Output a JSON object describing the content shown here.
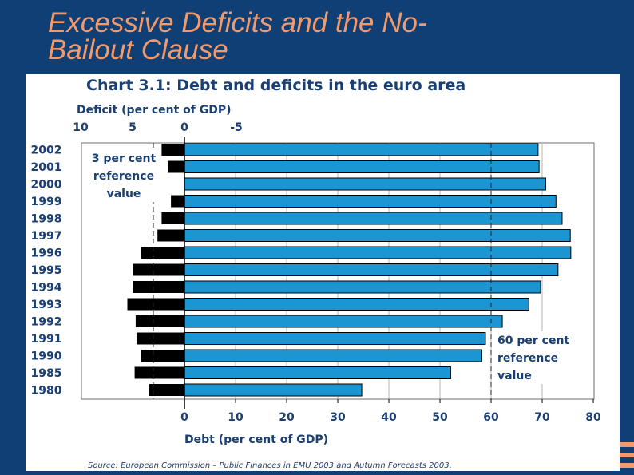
{
  "slide": {
    "title_line1": "Excessive Deficits and the No-",
    "title_line2": "Bailout Clause"
  },
  "chart_data": {
    "type": "bar",
    "title": "Chart 3.1: Debt and deficits in the euro area",
    "deficit_axis_label": "Deficit (per cent of GDP)",
    "deficit_ticks": [
      "10",
      "5",
      "0",
      "-5"
    ],
    "debt_axis_label": "Debt (per cent of GDP)",
    "debt_ticks": [
      "0",
      "10",
      "20",
      "30",
      "40",
      "50",
      "60",
      "70",
      "80"
    ],
    "debt_xlim": [
      0,
      80
    ],
    "deficit_xlim": [
      10,
      -5
    ],
    "categories": [
      "2002",
      "2001",
      "2000",
      "1999",
      "1998",
      "1997",
      "1996",
      "1995",
      "1994",
      "1993",
      "1992",
      "1991",
      "1990",
      "1985",
      "1980"
    ],
    "series": [
      {
        "name": "Deficit",
        "color": "#000000",
        "values": [
          2.2,
          1.6,
          -0.2,
          1.3,
          2.2,
          2.6,
          4.2,
          5.0,
          5.0,
          5.5,
          4.7,
          4.6,
          4.2,
          4.8,
          3.4
        ]
      },
      {
        "name": "Debt",
        "color": "#1b96d3",
        "values": [
          69.2,
          69.4,
          70.7,
          72.7,
          73.9,
          75.5,
          75.6,
          73.1,
          69.7,
          67.4,
          62.2,
          58.9,
          58.2,
          52.1,
          34.7
        ]
      }
    ],
    "reference_lines": [
      {
        "label": "3 per cent reference value",
        "axis": "deficit",
        "value": 3
      },
      {
        "label": "60 per cent reference value",
        "axis": "debt",
        "value": 60
      }
    ],
    "source": "Source: European Commission – Public Finances in EMU 2003 and Autumn Forecasts 2003."
  }
}
